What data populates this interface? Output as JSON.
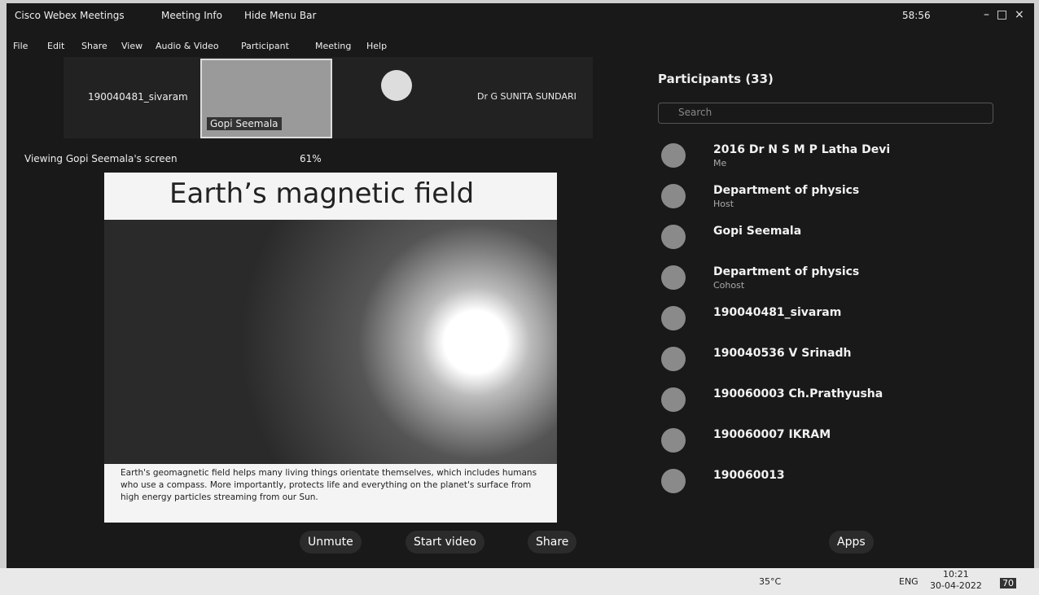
{
  "title_bar": {
    "app": "Cisco Webex Meetings",
    "meeting_info": "Meeting Info",
    "hide_menu": "Hide Menu Bar",
    "timer": "58:56"
  },
  "menu": [
    "File",
    "Edit",
    "Share",
    "View",
    "Audio & Video",
    "Participant",
    "Meeting",
    "Help"
  ],
  "video_strip": {
    "tiles": [
      "190040481_sivaram",
      "Gopi Seemala",
      "Dr G SUNITA SUNDARI"
    ]
  },
  "share": {
    "viewing": "Viewing Gopi Seemala's screen",
    "zoom": "61%"
  },
  "slide": {
    "title": "Earth’s magnetic field",
    "caption": "Earth's geomagnetic field helps many living things orientate themselves, which includes humans who use a compass. More importantly, protects life and everything on the planet's surface from high energy particles streaming from our Sun."
  },
  "participants": {
    "header": "Participants (33)",
    "search": "Search",
    "list": [
      {
        "name": "2016 Dr N S M P Latha Devi",
        "role": "Me"
      },
      {
        "name": "Department of physics",
        "role": "Host"
      },
      {
        "name": "Gopi Seemala"
      },
      {
        "name": "Department of physics",
        "role": "Cohost"
      },
      {
        "name": "190040481_sivaram"
      },
      {
        "name": "190040536 V Srinadh"
      },
      {
        "name": "190060003 Ch.Prathyusha"
      },
      {
        "name": "190060007 IKRAM"
      },
      {
        "name": "190060013"
      }
    ]
  },
  "controls": [
    "Unmute",
    "Start video",
    "Share",
    "Apps"
  ],
  "taskbar": {
    "temp": "35°C",
    "lang": "ENG",
    "time": "10:21",
    "date": "30-04-2022",
    "notifications": "70"
  }
}
